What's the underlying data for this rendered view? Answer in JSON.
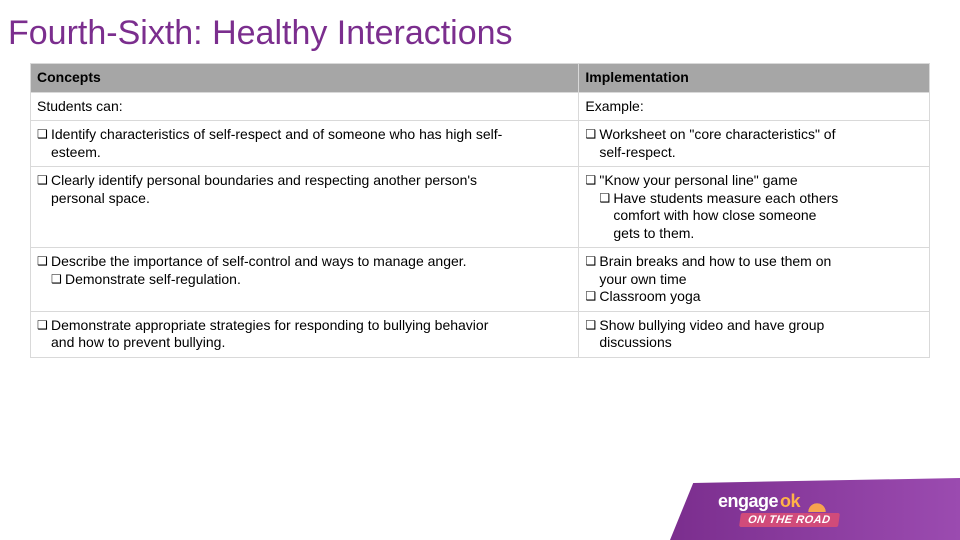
{
  "title": "Fourth-Sixth: Healthy Interactions",
  "table": {
    "headers": {
      "c1": "Concepts",
      "c2": "Implementation"
    },
    "sub": {
      "c1": "Students can:",
      "c2": "Example:"
    },
    "rows": [
      {
        "c1": [
          {
            "text": "Identify characteristics of self-respect and of someone who has high self-",
            "bullet": true
          },
          {
            "text": "esteem.",
            "hanging": true
          }
        ],
        "c2": [
          {
            "text": "Worksheet on \"core characteristics\" of",
            "bullet": true
          },
          {
            "text": "self-respect.",
            "hanging": true
          }
        ]
      },
      {
        "c1": [
          {
            "text": "Clearly identify personal boundaries and respecting another person's",
            "bullet": true
          },
          {
            "text": "personal space.",
            "hanging": true
          }
        ],
        "c2": [
          {
            "text": "\"Know your personal line\" game",
            "bullet": true
          },
          {
            "text": "Have students measure each others",
            "bullet": true,
            "nested": true
          },
          {
            "text": "comfort with how close someone",
            "hanging": true,
            "nested_hang": true
          },
          {
            "text": "gets to them.",
            "hanging": true,
            "nested_hang": true
          }
        ]
      },
      {
        "c1": [
          {
            "text": "Describe the importance of self-control and ways to manage anger.",
            "bullet": true
          },
          {
            "text": "Demonstrate self-regulation.",
            "bullet": true,
            "nested": true
          }
        ],
        "c2": [
          {
            "text": "Brain breaks and how to use them on",
            "bullet": true
          },
          {
            "text": "your own time",
            "hanging": true
          },
          {
            "text": "Classroom yoga",
            "bullet": true
          }
        ]
      },
      {
        "c1": [
          {
            "text": "Demonstrate appropriate strategies for responding to bullying behavior",
            "bullet": true
          },
          {
            "text": "and how to prevent bullying.",
            "hanging": true
          }
        ],
        "c2": [
          {
            "text": "Show bullying video and have group",
            "bullet": true
          },
          {
            "text": "discussions",
            "hanging": true
          }
        ]
      }
    ]
  },
  "footer": {
    "brand1": "engage",
    "brand2": "ok",
    "tagline": "ON THE ROAD"
  },
  "colors": {
    "title": "#7b2e8e",
    "header_bg": "#a6a6a6",
    "border": "#d9d9d9",
    "banner_grad_a": "#7b2e8e",
    "banner_grad_b": "#9b4bb0",
    "ok": "#ffb347",
    "road_bg": "#d14b7a"
  }
}
